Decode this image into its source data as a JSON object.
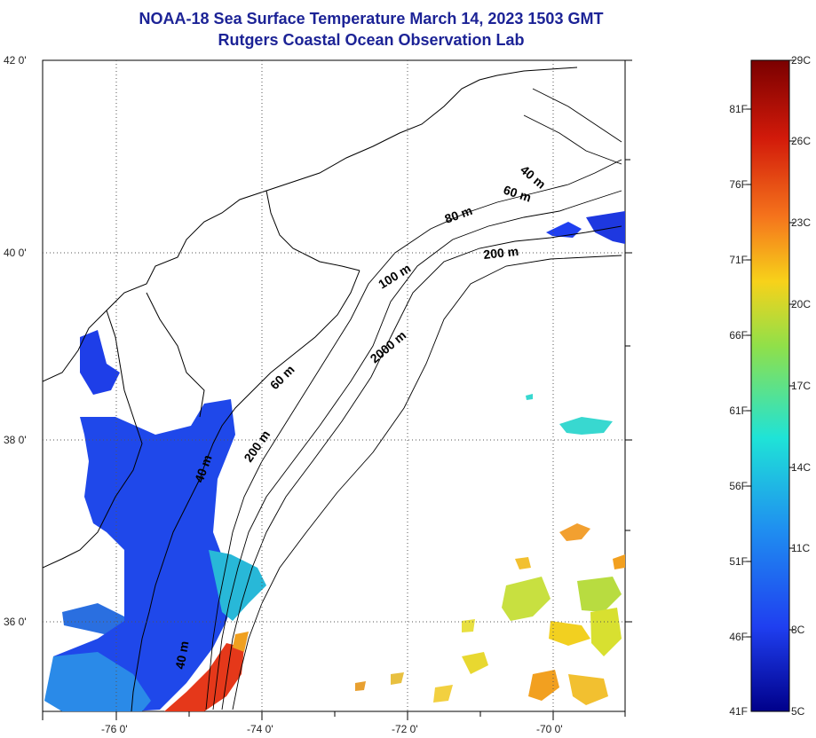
{
  "title": {
    "line1": "NOAA-18 Sea Surface Temperature March 14, 2023 1503 GMT",
    "line2": "Rutgers Coastal Ocean Observation Lab"
  },
  "axes": {
    "lat_labels": [
      "42 0'",
      "40 0'",
      "38 0'",
      "36 0'"
    ],
    "lon_labels": [
      "-76 0'",
      "-74 0'",
      "-72 0'",
      "-70 0'"
    ],
    "grid": "dotted"
  },
  "contours": [
    "40 m",
    "60 m",
    "80 m",
    "200 m",
    "100 m",
    "2000 m",
    "60 m",
    "200 m",
    "40 m",
    "40 m"
  ],
  "colorbar": {
    "fahrenheit": [
      "81F",
      "76F",
      "71F",
      "66F",
      "61F",
      "56F",
      "51F",
      "46F",
      "41F"
    ],
    "celsius": [
      "29C",
      "26C",
      "23C",
      "20C",
      "17C",
      "14C",
      "11C",
      "8C",
      "5C"
    ],
    "colors": [
      "#7a0000",
      "#d21a0a",
      "#f5741c",
      "#f7d21a",
      "#8fe04a",
      "#1fe3d7",
      "#1f8ff0",
      "#1f3ff0",
      "#00008a"
    ]
  }
}
